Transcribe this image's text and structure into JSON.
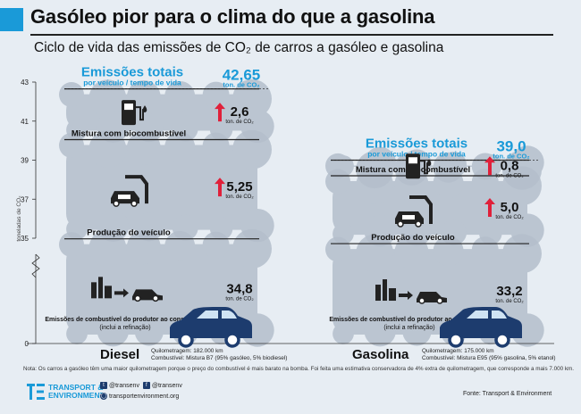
{
  "title": "Gasóleo pior para o clima do que a gasolina",
  "subtitle": "Ciclo de vida das emissões de CO₂ de carros a gasóleo e gasolina",
  "colors": {
    "accent": "#1a9ad8",
    "arrow": "#e0203a",
    "car": "#1d3c6e",
    "cloud": "#b4bfcc",
    "text": "#1b1b1b"
  },
  "chart_data": {
    "type": "bar",
    "ylabel": "toneladas de CO₂",
    "ylim": [
      0,
      43
    ],
    "yticks": [
      0,
      35,
      37,
      39,
      41,
      43
    ],
    "y_axis_break": true,
    "unit_label": "ton. de CO₂",
    "totals_title": "Emissões totais",
    "totals_sub": "por veículo / tempo de vida",
    "categories": [
      "Diesel",
      "Gasolina"
    ],
    "totals": [
      {
        "category": "Diesel",
        "value_text": "42,65",
        "value": 42.65
      },
      {
        "category": "Gasolina",
        "value_text": "39,0",
        "value": 39.0
      }
    ],
    "series": [
      {
        "name": "Emissões de combustível do produtor ao consumidor",
        "name_suffix": "(inclui a refinação)",
        "values": [
          34.8,
          33.2
        ],
        "value_texts": [
          "34,8",
          "33,2"
        ]
      },
      {
        "name": "Produção do veículo",
        "values": [
          5.25,
          5.0
        ],
        "value_texts": [
          "5,25",
          "5,0"
        ]
      },
      {
        "name": "Mistura com biocombustível",
        "values": [
          2.6,
          0.8
        ],
        "value_texts": [
          "2,6",
          "0,8"
        ]
      }
    ],
    "car_info": [
      {
        "name": "Diesel",
        "mileage": "Quilometragem: 182.000 km",
        "fuel": "Combustível: Mistura B7 (95% gasóleo, 5% biodiesel)"
      },
      {
        "name": "Gasolina",
        "mileage": "Quilometragem: 175.000 km",
        "fuel": "Combustível: Mistura E95 (95% gasolina, 5% etanol)"
      }
    ]
  },
  "note": "Nota: Os carros a gasóleo têm uma maior quilometragem porque o preço do combustível é mais barato na bomba. Foi feita uma estimativa conservadora de 4% extra de quilometragem, que corresponde a mais 7.000 km.",
  "footer": {
    "org_line1": "TRANSPORT &",
    "org_line2": "ENVIRONMENT",
    "twitter": "@transenv",
    "facebook": "@transenv",
    "website": "transportenvironment.org",
    "source": "Fonte: Transport & Environment"
  }
}
